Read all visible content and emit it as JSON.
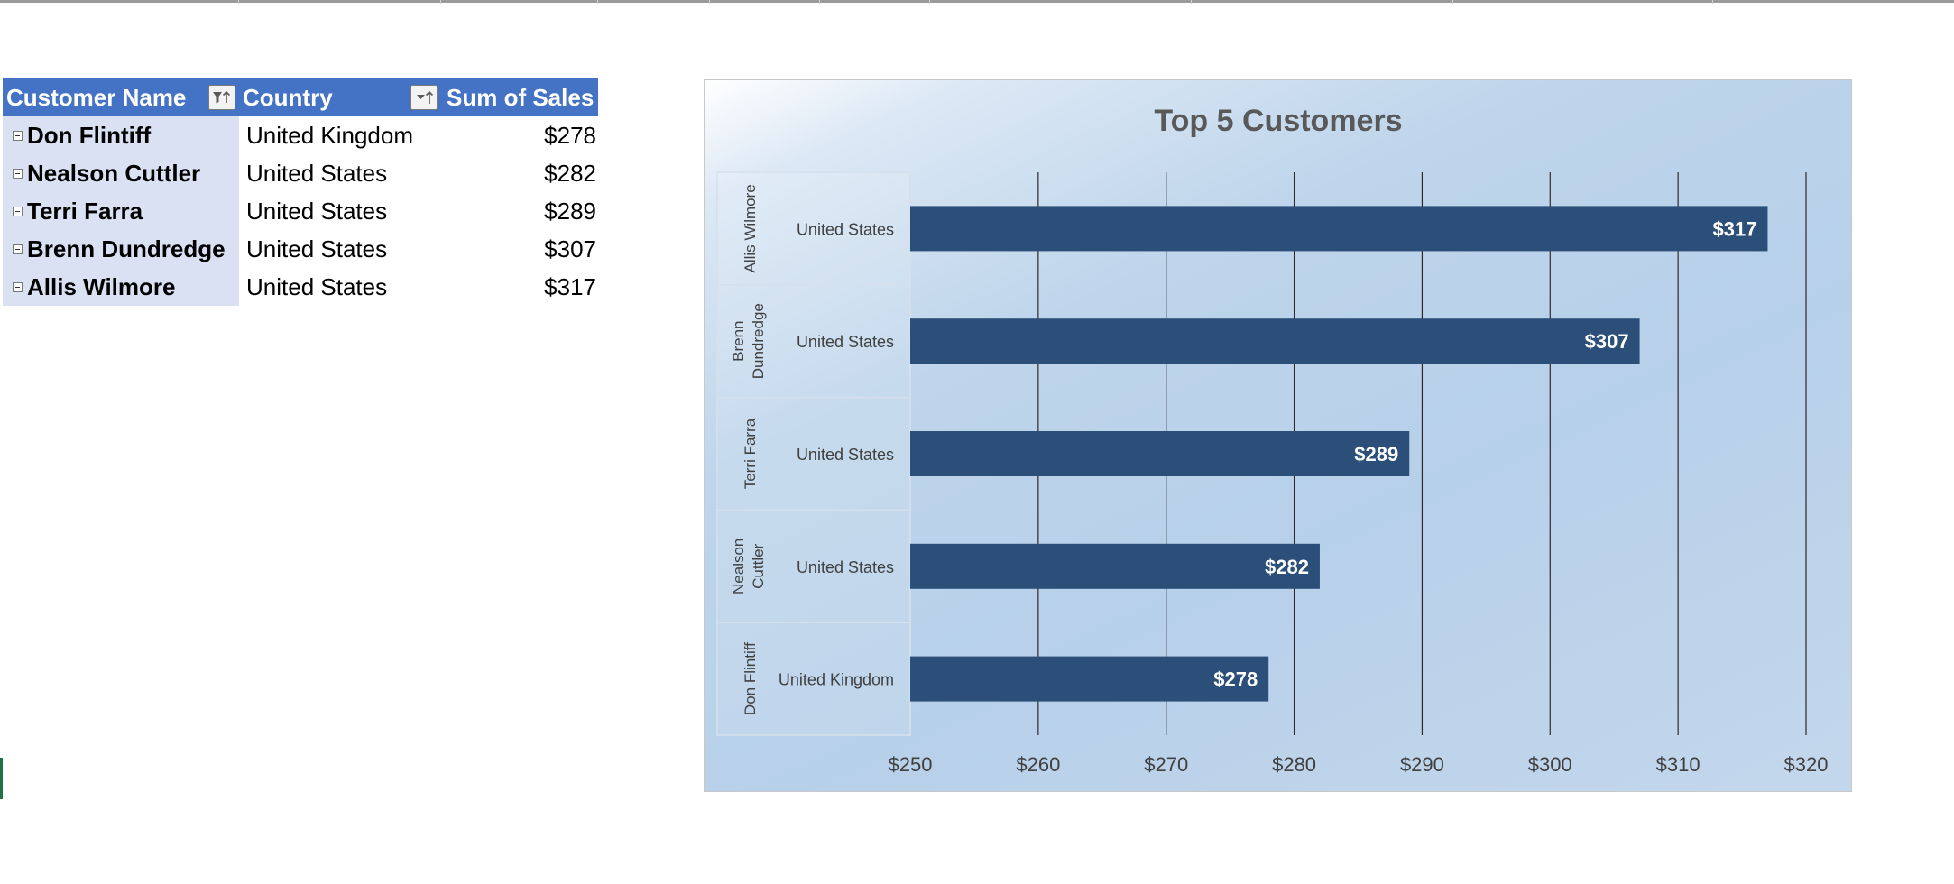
{
  "pivot_table": {
    "headers": {
      "customer_name": "Customer Name",
      "country": "Country",
      "sum_of_sales": "Sum of Sales"
    },
    "rows": [
      {
        "customer": "Don Flintiff",
        "country": "United Kingdom",
        "sales": "$278"
      },
      {
        "customer": "Nealson Cuttler",
        "country": "United States",
        "sales": "$282"
      },
      {
        "customer": "Terri Farra",
        "country": "United States",
        "sales": "$289"
      },
      {
        "customer": "Brenn Dundredge",
        "country": "United States",
        "sales": "$307"
      },
      {
        "customer": "Allis Wilmore",
        "country": "United States",
        "sales": "$317"
      }
    ]
  },
  "chart_data": {
    "type": "bar",
    "orientation": "horizontal",
    "title": "Top 5 Customers",
    "xlim": [
      250,
      320
    ],
    "x_ticks": [
      250,
      260,
      270,
      280,
      290,
      300,
      310,
      320
    ],
    "x_tick_labels": [
      "$250",
      "$260",
      "$270",
      "$280",
      "$290",
      "$300",
      "$310",
      "$320"
    ],
    "categories": [
      {
        "customer": "Allis Wilmore",
        "country": "United States"
      },
      {
        "customer": "Brenn Dundredge",
        "country": "United States"
      },
      {
        "customer": "Terri Farra",
        "country": "United States"
      },
      {
        "customer": "Nealson Cuttler",
        "country": "United States"
      },
      {
        "customer": "Don Flintiff",
        "country": "United Kingdom"
      }
    ],
    "values": [
      317,
      307,
      289,
      282,
      278
    ],
    "data_labels": [
      "$317",
      "$307",
      "$289",
      "$282",
      "$278"
    ],
    "grid": "vertical",
    "legend": "none",
    "bar_color": "#2b4f79"
  },
  "colors": {
    "header_blue": "#4472c4",
    "row_label_fill": "#d9e1f2",
    "excel_green": "#217346"
  },
  "icons": {
    "customer_filter": "filter-sort-icon",
    "country_sort": "sort-icon"
  }
}
